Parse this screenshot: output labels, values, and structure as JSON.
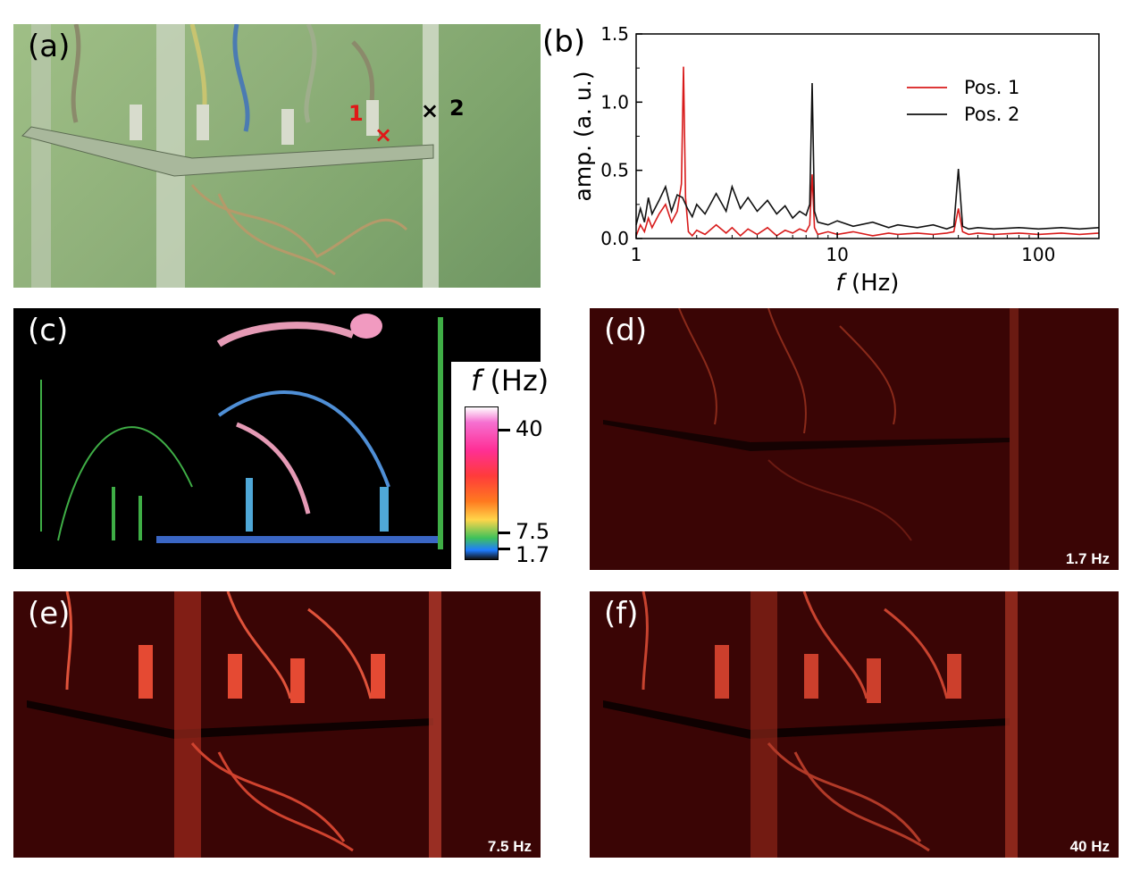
{
  "panels": {
    "a": {
      "label": "(a)",
      "marker_1": "1",
      "marker_2": "2"
    },
    "b": {
      "label": "(b)"
    },
    "c": {
      "label": "(c)",
      "colorbar_title_italic": "f",
      "colorbar_title_rest": " (Hz)",
      "ticks": [
        "40",
        "7.5",
        "1.7"
      ]
    },
    "d": {
      "label": "(d)",
      "freq": "1.7 Hz"
    },
    "e": {
      "label": "(e)",
      "freq": "7.5 Hz"
    },
    "f": {
      "label": "(f)",
      "freq": "40 Hz"
    }
  },
  "colors": {
    "pos1": "#d81b1b",
    "pos2": "#111111",
    "heatmap_red": "#c8261b"
  },
  "chart_data": {
    "type": "line",
    "title": "",
    "xlabel_italic": "f",
    "xlabel_rest": " (Hz)",
    "ylabel": "amp. (a. u.)",
    "xscale": "log",
    "xlim": [
      1,
      200
    ],
    "ylim": [
      0,
      1.5
    ],
    "xticks": [
      1,
      10,
      100
    ],
    "xtick_labels": [
      "1",
      "10",
      "100"
    ],
    "yticks": [
      0,
      0.5,
      1.0,
      1.5
    ],
    "ytick_labels": [
      "0.0",
      "0.5",
      "1.0",
      "1.5"
    ],
    "legend_position": "top-right",
    "series": [
      {
        "name": "Pos. 1",
        "color": "#d81b1b",
        "x": [
          1,
          1.05,
          1.1,
          1.15,
          1.2,
          1.3,
          1.4,
          1.5,
          1.6,
          1.68,
          1.72,
          1.76,
          1.82,
          1.9,
          2.0,
          2.2,
          2.5,
          2.8,
          3.0,
          3.3,
          3.6,
          4.0,
          4.5,
          5.0,
          5.5,
          6.0,
          6.5,
          7.0,
          7.3,
          7.5,
          7.7,
          8.0,
          9.0,
          10,
          12,
          15,
          18,
          20,
          25,
          30,
          35,
          38,
          40,
          42,
          45,
          50,
          60,
          80,
          100,
          130,
          160,
          200
        ],
        "y": [
          0.02,
          0.1,
          0.05,
          0.15,
          0.08,
          0.18,
          0.25,
          0.12,
          0.2,
          0.4,
          1.26,
          0.3,
          0.05,
          0.02,
          0.06,
          0.03,
          0.1,
          0.04,
          0.08,
          0.02,
          0.07,
          0.03,
          0.08,
          0.02,
          0.06,
          0.04,
          0.07,
          0.05,
          0.1,
          0.47,
          0.08,
          0.03,
          0.05,
          0.03,
          0.05,
          0.02,
          0.04,
          0.03,
          0.04,
          0.03,
          0.04,
          0.05,
          0.22,
          0.05,
          0.03,
          0.04,
          0.03,
          0.04,
          0.03,
          0.04,
          0.03,
          0.04
        ]
      },
      {
        "name": "Pos. 2",
        "color": "#111111",
        "x": [
          1,
          1.05,
          1.1,
          1.15,
          1.2,
          1.3,
          1.4,
          1.5,
          1.6,
          1.7,
          1.8,
          1.9,
          2.0,
          2.2,
          2.5,
          2.8,
          3.0,
          3.3,
          3.6,
          4.0,
          4.5,
          5.0,
          5.5,
          6.0,
          6.5,
          7.0,
          7.3,
          7.5,
          7.7,
          8.0,
          9.0,
          10,
          12,
          15,
          18,
          20,
          25,
          30,
          35,
          38,
          40,
          42,
          45,
          50,
          60,
          80,
          100,
          130,
          160,
          200
        ],
        "y": [
          0.1,
          0.22,
          0.12,
          0.3,
          0.18,
          0.28,
          0.38,
          0.2,
          0.32,
          0.3,
          0.22,
          0.16,
          0.25,
          0.18,
          0.33,
          0.2,
          0.38,
          0.22,
          0.3,
          0.2,
          0.28,
          0.18,
          0.24,
          0.15,
          0.2,
          0.17,
          0.25,
          1.14,
          0.2,
          0.12,
          0.1,
          0.13,
          0.09,
          0.12,
          0.08,
          0.1,
          0.08,
          0.1,
          0.07,
          0.09,
          0.51,
          0.09,
          0.07,
          0.08,
          0.07,
          0.08,
          0.07,
          0.08,
          0.07,
          0.08
        ]
      }
    ]
  }
}
